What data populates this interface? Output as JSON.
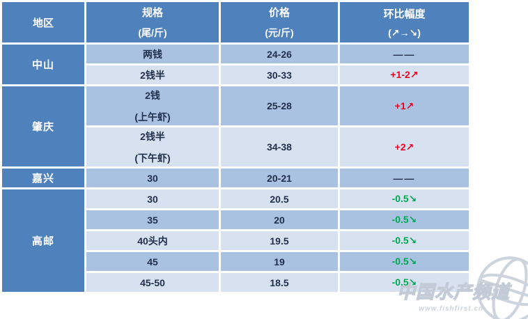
{
  "colors": {
    "header_bg": "#4f81bd",
    "row_medium": "#a9c2e1",
    "row_light": "#d7e1f0",
    "text_dark": "#20304c",
    "rise_red": "#f1001e",
    "fall_green": "#00a651",
    "watermark_gray": "#c9d0da"
  },
  "table": {
    "headers": [
      {
        "key": "region",
        "line1": "地区",
        "line2": ""
      },
      {
        "key": "spec",
        "line1": "规格",
        "line2": "(尾/斤)"
      },
      {
        "key": "price",
        "line1": "价格",
        "line2": "(元/斤)"
      },
      {
        "key": "change",
        "line1": "环比幅度",
        "line2": "(↗→↘)"
      }
    ],
    "groups": [
      {
        "key": "zhongshan",
        "region": "中山",
        "rows": [
          {
            "spec": "两钱",
            "spec2": "",
            "price": "24-26",
            "change": "——",
            "trend": "flat"
          },
          {
            "spec": "2钱半",
            "spec2": "",
            "price": "30-33",
            "change": "+1-2↗",
            "trend": "up"
          }
        ]
      },
      {
        "key": "zhaoqing",
        "region": "肇庆",
        "rows": [
          {
            "spec": "2钱",
            "spec2": "(上午虾)",
            "price": "25-28",
            "change": "+1↗",
            "trend": "up"
          },
          {
            "spec": "2钱半",
            "spec2": "(下午虾)",
            "price": "34-38",
            "change": "+2↗",
            "trend": "up"
          }
        ]
      },
      {
        "key": "jiaxing",
        "region": "嘉兴",
        "rows": [
          {
            "spec": "30",
            "spec2": "",
            "price": "20-21",
            "change": "——",
            "trend": "flat"
          }
        ]
      },
      {
        "key": "gaoyou",
        "region": "高邮",
        "rows": [
          {
            "spec": "30",
            "spec2": "",
            "price": "20.5",
            "change": "-0.5↘",
            "trend": "down"
          },
          {
            "spec": "35",
            "spec2": "",
            "price": "20",
            "change": "-0.5↘",
            "trend": "down"
          },
          {
            "spec": "40头内",
            "spec2": "",
            "price": "19.5",
            "change": "-0.5↘",
            "trend": "down"
          },
          {
            "spec": "45",
            "spec2": "",
            "price": "19",
            "change": "-0.5↘",
            "trend": "down"
          },
          {
            "spec": "45-50",
            "spec2": "",
            "price": "18.5",
            "change": "-0.5↘",
            "trend": "down"
          }
        ]
      }
    ]
  },
  "chart_data": {
    "type": "table",
    "columns": [
      "地区",
      "规格(尾/斤)",
      "价格(元/斤)",
      "环比幅度(↗→↘)"
    ],
    "rows": [
      [
        "中山",
        "两钱",
        "24-26",
        "——"
      ],
      [
        "中山",
        "2钱半",
        "30-33",
        "+1-2↗"
      ],
      [
        "肇庆",
        "2钱(上午虾)",
        "25-28",
        "+1↗"
      ],
      [
        "肇庆",
        "2钱半(下午虾)",
        "34-38",
        "+2↗"
      ],
      [
        "嘉兴",
        "30",
        "20-21",
        "——"
      ],
      [
        "高邮",
        "30",
        "20.5",
        "-0.5↘"
      ],
      [
        "高邮",
        "35",
        "20",
        "-0.5↘"
      ],
      [
        "高邮",
        "40头内",
        "19.5",
        "-0.5↘"
      ],
      [
        "高邮",
        "45",
        "19",
        "-0.5↘"
      ],
      [
        "高邮",
        "45-50",
        "18.5",
        "-0.5↘"
      ]
    ]
  },
  "watermark": {
    "title": "中国水产频道",
    "url": "www.fishfirst.cn"
  }
}
